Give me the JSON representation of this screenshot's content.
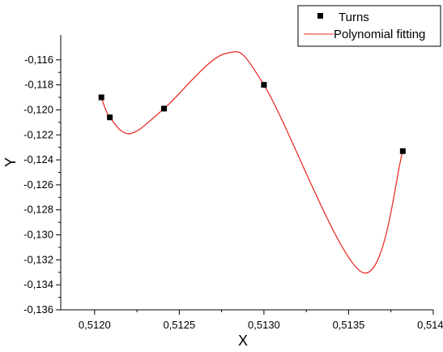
{
  "chart_data": {
    "type": "scatter",
    "title": "",
    "xlabel": "X",
    "ylabel": "Y",
    "xlim": [
      0.5118,
      0.514
    ],
    "ylim": [
      -0.136,
      -0.114
    ],
    "x_ticks": [
      0.512,
      0.5125,
      0.513,
      0.5135,
      0.514
    ],
    "x_tick_labels": [
      "0,5120",
      "0,5125",
      "0,5130",
      "0,5135",
      "0,5140"
    ],
    "y_ticks": [
      -0.116,
      -0.118,
      -0.12,
      -0.122,
      -0.124,
      -0.126,
      -0.128,
      -0.13,
      -0.132,
      -0.134,
      -0.136
    ],
    "y_tick_labels": [
      "-0,116",
      "-0,118",
      "-0,120",
      "-0,122",
      "-0,124",
      "-0,126",
      "-0,128",
      "-0,130",
      "-0,132",
      "-0,134",
      "-0,136"
    ],
    "grid": false,
    "legend_position": "top-right",
    "series": [
      {
        "name": "Turns",
        "kind": "markers",
        "color": "#000000",
        "points": [
          {
            "x": 0.51204,
            "y": -0.119
          },
          {
            "x": 0.51209,
            "y": -0.1206
          },
          {
            "x": 0.51241,
            "y": -0.1199
          },
          {
            "x": 0.513,
            "y": -0.118
          },
          {
            "x": 0.51382,
            "y": -0.1233
          }
        ]
      },
      {
        "name": "Polynomial fitting",
        "kind": "line",
        "color": "#e8231b",
        "points": [
          {
            "x": 0.51204,
            "y": -0.119
          },
          {
            "x": 0.51209,
            "y": -0.1206
          },
          {
            "x": 0.51221,
            "y": -0.1219
          },
          {
            "x": 0.51241,
            "y": -0.1199
          },
          {
            "x": 0.51277,
            "y": -0.1155
          },
          {
            "x": 0.513,
            "y": -0.118
          },
          {
            "x": 0.51358,
            "y": -0.133
          },
          {
            "x": 0.51382,
            "y": -0.1233
          }
        ]
      }
    ]
  }
}
